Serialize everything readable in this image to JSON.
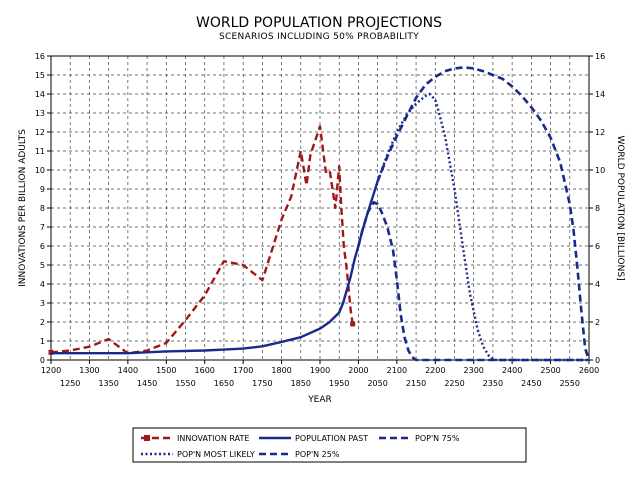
{
  "chart_data": {
    "type": "line",
    "title": "WORLD POPULATION PROJECTIONS",
    "subtitle": "SCENARIOS INCLUDING 50% PROBABILITY",
    "xlabel": "YEAR",
    "ylabel_left": "INNOVATIONS PER BILLION ADULTS",
    "ylabel_right": "WORLD POPULATION [BILLIONS]",
    "xlim": [
      1200,
      2600
    ],
    "ylim_left": [
      0,
      16
    ],
    "ylim_right": [
      0,
      16
    ],
    "x_ticks_top_row": [
      "1200",
      "1300",
      "1400",
      "1500",
      "1600",
      "1700",
      "1800",
      "1900",
      "2000",
      "2100",
      "2200",
      "2300",
      "2400",
      "2500",
      "2600"
    ],
    "x_ticks_bottom_row": [
      "1250",
      "1350",
      "1450",
      "1550",
      "1650",
      "1750",
      "1850",
      "1950",
      "2050",
      "2150",
      "2250",
      "2350",
      "2450",
      "2550"
    ],
    "y_ticks_left": [
      "0",
      "1",
      "2",
      "3",
      "4",
      "5",
      "6",
      "7",
      "8",
      "9",
      "10",
      "11",
      "12",
      "13",
      "14",
      "15",
      "16"
    ],
    "y_ticks_right": [
      "0",
      "2",
      "4",
      "6",
      "8",
      "10",
      "12",
      "14",
      "16"
    ],
    "grid": true,
    "series": [
      {
        "name": "INNOVATION RATE",
        "axis": "left",
        "color": "#a01818",
        "style": "dashed-square",
        "x": [
          1200,
          1250,
          1300,
          1350,
          1400,
          1450,
          1500,
          1550,
          1600,
          1650,
          1700,
          1750,
          1800,
          1825,
          1850,
          1865,
          1875,
          1900,
          1915,
          1925,
          1940,
          1950,
          1955,
          1962,
          1970,
          1980,
          1985
        ],
        "y": [
          0.4,
          0.5,
          0.7,
          1.1,
          0.35,
          0.5,
          0.9,
          2.1,
          3.4,
          5.2,
          5.0,
          4.2,
          7.4,
          8.6,
          11.0,
          9.2,
          10.8,
          12.3,
          9.9,
          10.0,
          8.0,
          10.2,
          8.2,
          6.0,
          4.7,
          2.6,
          1.9
        ]
      },
      {
        "name": "POPULATION PAST",
        "axis": "right",
        "color": "#1a2a8a",
        "style": "solid",
        "x": [
          1200,
          1300,
          1400,
          1500,
          1600,
          1650,
          1700,
          1750,
          1800,
          1850,
          1900,
          1925,
          1950,
          1960,
          1970,
          1980,
          1990,
          2000,
          2010,
          2025,
          2050
        ],
        "y": [
          0.36,
          0.36,
          0.36,
          0.45,
          0.5,
          0.55,
          0.6,
          0.72,
          0.95,
          1.2,
          1.65,
          2.0,
          2.5,
          3.0,
          3.7,
          4.4,
          5.3,
          6.0,
          6.8,
          7.8,
          9.4
        ]
      },
      {
        "name": "POP'N 75%",
        "axis": "right",
        "color": "#1a2a8a",
        "style": "dashed",
        "x": [
          2050,
          2075,
          2100,
          2120,
          2130,
          2150,
          2175,
          2200,
          2225,
          2250,
          2275,
          2300,
          2325,
          2350,
          2375,
          2400,
          2425,
          2450,
          2475,
          2500,
          2525,
          2550,
          2560,
          2570,
          2580,
          2590,
          2600
        ],
        "y": [
          9.4,
          10.7,
          11.8,
          12.6,
          13.0,
          13.8,
          14.5,
          14.9,
          15.2,
          15.35,
          15.4,
          15.35,
          15.2,
          15.0,
          14.8,
          14.4,
          13.9,
          13.3,
          12.6,
          11.7,
          10.4,
          8.2,
          6.8,
          4.8,
          2.6,
          0.6,
          0.0
        ]
      },
      {
        "name": "POP'N MOST LIKELY",
        "axis": "right",
        "color": "#1a2a8a",
        "style": "dotted",
        "x": [
          2050,
          2075,
          2100,
          2125,
          2150,
          2175,
          2185,
          2200,
          2210,
          2225,
          2250,
          2270,
          2290,
          2310,
          2325,
          2340,
          2350,
          2360,
          2375,
          2400,
          2450,
          2500,
          2550,
          2600
        ],
        "y": [
          9.4,
          10.8,
          12.0,
          12.9,
          13.5,
          13.9,
          14.0,
          13.7,
          13.0,
          11.8,
          9.0,
          6.2,
          3.5,
          1.6,
          0.7,
          0.2,
          0.05,
          0.0,
          0.0,
          0.0,
          0.0,
          0.0,
          0.0,
          0.0
        ]
      },
      {
        "name": "POP'N 25%",
        "axis": "right",
        "color": "#1a2a8a",
        "style": "dashed",
        "x": [
          2000,
          2010,
          2025,
          2040,
          2050,
          2060,
          2075,
          2090,
          2100,
          2110,
          2120,
          2130,
          2140,
          2150,
          2175,
          2200,
          2300,
          2400,
          2500,
          2600
        ],
        "y": [
          6.0,
          6.8,
          7.8,
          8.3,
          8.2,
          7.8,
          7.0,
          5.8,
          4.2,
          2.4,
          1.2,
          0.5,
          0.15,
          0.0,
          0.0,
          0.0,
          0.0,
          0.0,
          0.0,
          0.0
        ]
      }
    ],
    "legend": {
      "placement": "bottom",
      "items": [
        {
          "label": "INNOVATION RATE",
          "series": 0
        },
        {
          "label": "POPULATION PAST",
          "series": 1
        },
        {
          "label": "POP'N 75%",
          "series": 2
        },
        {
          "label": "POP'N MOST LIKELY",
          "series": 3
        },
        {
          "label": "POP'N 25%",
          "series": 4
        }
      ]
    }
  }
}
